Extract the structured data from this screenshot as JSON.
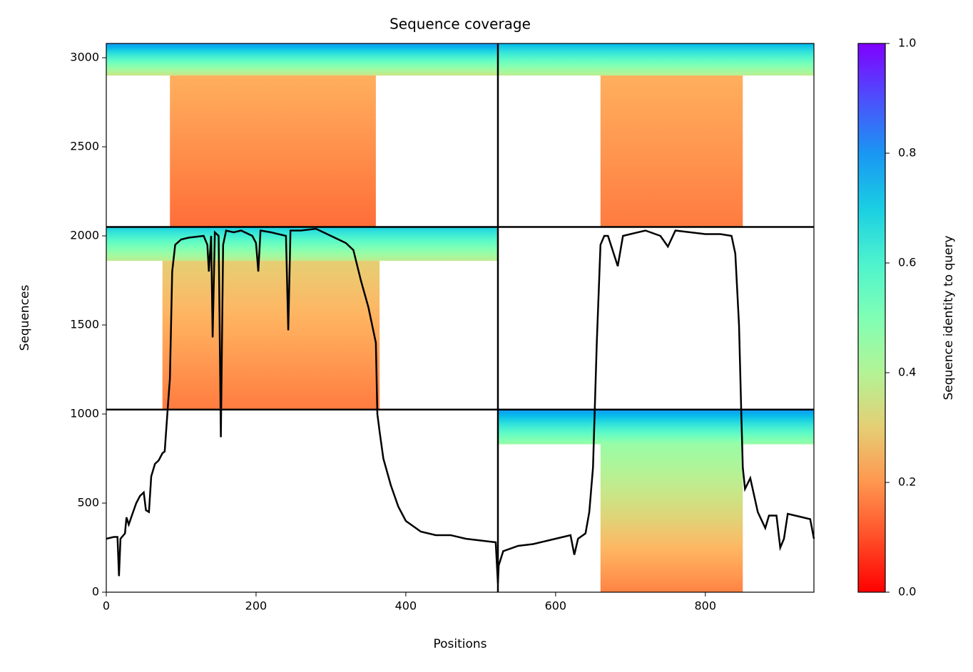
{
  "chart_data": {
    "type": "msa_coverage",
    "title": "Sequence coverage",
    "xlabel": "Positions",
    "ylabel": "Sequences",
    "xlim": [
      0,
      945
    ],
    "ylim": [
      0,
      3080
    ],
    "xticks": [
      0,
      200,
      400,
      600,
      800
    ],
    "yticks": [
      0,
      500,
      1000,
      1500,
      2000,
      2500,
      3000
    ],
    "boundaries": {
      "x": [
        523
      ],
      "y": [
        1025,
        2050
      ]
    },
    "blocks": [
      {
        "x": [
          0,
          523
        ],
        "y": [
          2900,
          3080
        ],
        "identity": [
          0.35,
          0.8
        ]
      },
      {
        "x": [
          85,
          360
        ],
        "y": [
          2050,
          2900
        ],
        "identity": [
          0.14,
          0.24
        ]
      },
      {
        "x": [
          523,
          945
        ],
        "y": [
          2900,
          3080
        ],
        "identity": [
          0.38,
          0.75
        ]
      },
      {
        "x": [
          660,
          850
        ],
        "y": [
          2050,
          2900
        ],
        "identity": [
          0.16,
          0.24
        ]
      },
      {
        "x": [
          0,
          523
        ],
        "y": [
          1860,
          2050
        ],
        "identity": [
          0.38,
          0.7
        ]
      },
      {
        "x": [
          75,
          365
        ],
        "y": [
          1025,
          1860
        ],
        "identity": [
          0.16,
          0.3
        ]
      },
      {
        "x": [
          523,
          945
        ],
        "y": [
          830,
          1025
        ],
        "identity": [
          0.45,
          0.8
        ]
      },
      {
        "x": [
          660,
          850
        ],
        "y": [
          0,
          830
        ],
        "identity": [
          0.17,
          0.45
        ]
      }
    ],
    "coverage": {
      "color": "#000000",
      "x": [
        0,
        10,
        15,
        17,
        19,
        25,
        27,
        30,
        35,
        40,
        45,
        50,
        53,
        57,
        60,
        65,
        70,
        75,
        78,
        82,
        85,
        88,
        92,
        100,
        110,
        130,
        135,
        137,
        140,
        142,
        145,
        150,
        153,
        156,
        160,
        170,
        180,
        195,
        200,
        203,
        206,
        220,
        240,
        243,
        246,
        260,
        280,
        300,
        320,
        330,
        340,
        350,
        360,
        362,
        365,
        370,
        380,
        390,
        400,
        420,
        440,
        460,
        480,
        500,
        520,
        523,
        524,
        530,
        550,
        570,
        590,
        610,
        620,
        625,
        630,
        640,
        645,
        650,
        655,
        660,
        665,
        670,
        680,
        683,
        690,
        700,
        720,
        740,
        750,
        760,
        780,
        800,
        820,
        835,
        840,
        845,
        848,
        850,
        853,
        860,
        870,
        880,
        885,
        895,
        900,
        905,
        910,
        930,
        940,
        945
      ],
      "values": [
        300,
        310,
        310,
        90,
        300,
        330,
        420,
        380,
        440,
        500,
        540,
        560,
        460,
        450,
        650,
        720,
        740,
        780,
        790,
        1030,
        1200,
        1800,
        1950,
        1980,
        1990,
        2000,
        1950,
        1800,
        2000,
        1430,
        2020,
        2000,
        870,
        1950,
        2030,
        2020,
        2030,
        2000,
        1960,
        1800,
        2030,
        2020,
        2000,
        1470,
        2030,
        2030,
        2040,
        2000,
        1960,
        1920,
        1750,
        1600,
        1400,
        1000,
        900,
        750,
        600,
        480,
        400,
        340,
        320,
        320,
        300,
        290,
        280,
        50,
        150,
        230,
        260,
        270,
        290,
        310,
        320,
        210,
        300,
        330,
        450,
        700,
        1400,
        1950,
        2000,
        2000,
        1870,
        1830,
        2000,
        2010,
        2030,
        2000,
        1940,
        2030,
        2020,
        2010,
        2010,
        2000,
        1900,
        1500,
        1000,
        700,
        580,
        640,
        450,
        360,
        430,
        430,
        250,
        300,
        440,
        420,
        410,
        300
      ]
    },
    "colorbar": {
      "label": "Sequence identity to query",
      "clim": [
        0,
        1
      ],
      "ticks": [
        {
          "value": 0,
          "label": "0.0"
        },
        0.2,
        0.4,
        0.6,
        0.8,
        {
          "value": 1,
          "label": "1.0"
        }
      ]
    }
  }
}
